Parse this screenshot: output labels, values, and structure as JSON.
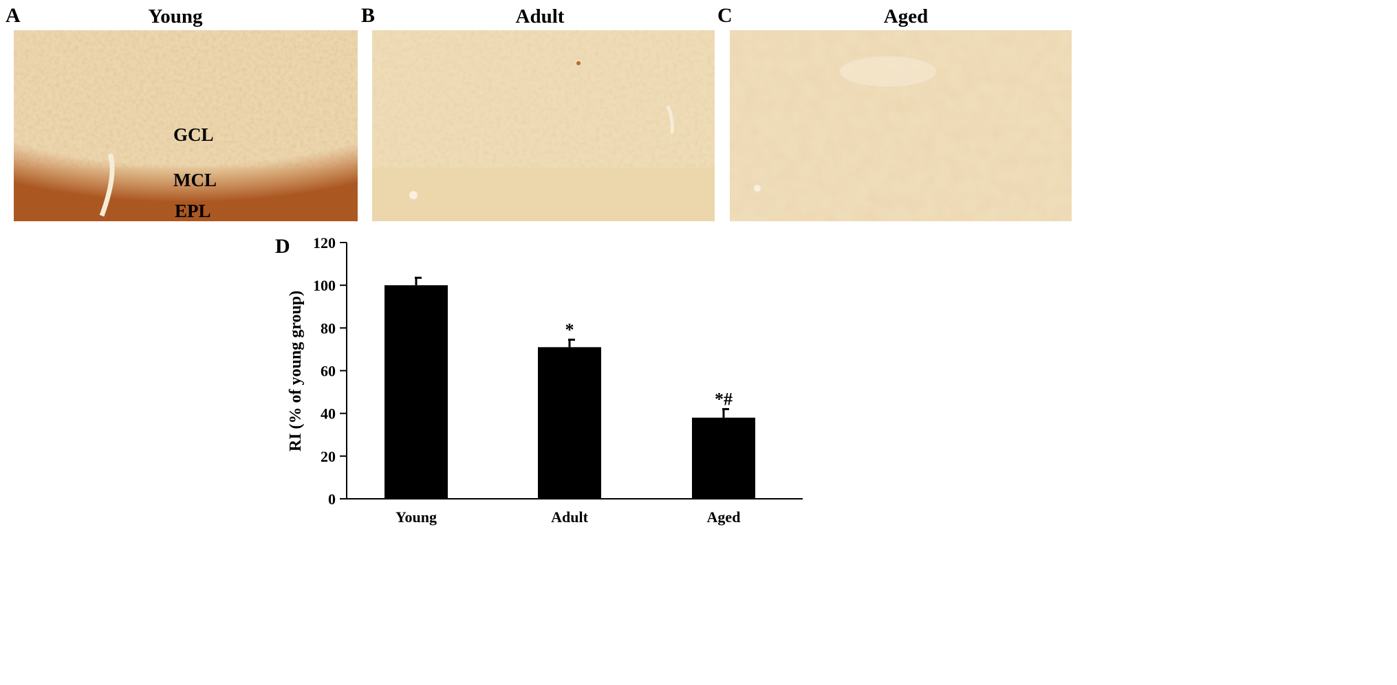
{
  "panels": [
    {
      "letter": "A",
      "title": "Young",
      "layers": [
        "GCL",
        "MCL",
        "EPL"
      ]
    },
    {
      "letter": "B",
      "title": "Adult"
    },
    {
      "letter": "C",
      "title": "Aged"
    }
  ],
  "chart_letter": "D",
  "colors": {
    "tissue_base": "#ecd8b2",
    "tissue_stain": "#c97a4a",
    "bar": "#000000"
  },
  "chart_data": {
    "type": "bar",
    "categories": [
      "Young",
      "Adult",
      "Aged"
    ],
    "values": [
      100,
      71,
      38
    ],
    "errors": [
      3.5,
      3.5,
      4
    ],
    "annotations": [
      "",
      "*",
      "*#"
    ],
    "ylabel": "RI (% of young group)",
    "xlabel": "",
    "ylim": [
      0,
      120
    ],
    "yticks": [
      0,
      20,
      40,
      60,
      80,
      100,
      120
    ],
    "grid": false
  }
}
